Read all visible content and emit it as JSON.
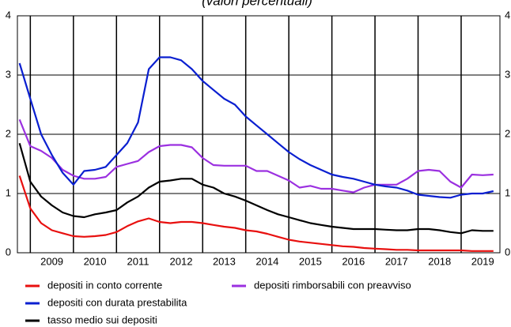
{
  "chart_data": {
    "type": "line",
    "title": "(valori percentuali)",
    "x": [
      2008.75,
      2009,
      2009.25,
      2009.5,
      2009.75,
      2010,
      2010.25,
      2010.5,
      2010.75,
      2011,
      2011.25,
      2011.5,
      2011.75,
      2012,
      2012.25,
      2012.5,
      2012.75,
      2013,
      2013.25,
      2013.5,
      2013.75,
      2014,
      2014.25,
      2014.5,
      2014.75,
      2015,
      2015.25,
      2015.5,
      2015.75,
      2016,
      2016.25,
      2016.5,
      2016.75,
      2017,
      2017.25,
      2017.5,
      2017.75,
      2018,
      2018.25,
      2018.5,
      2018.75,
      2019,
      2019.25,
      2019.5,
      2019.75
    ],
    "series": [
      {
        "name": "depositi in conto corrente",
        "color": "#e8100f",
        "values": [
          1.3,
          0.75,
          0.5,
          0.38,
          0.33,
          0.28,
          0.27,
          0.28,
          0.3,
          0.35,
          0.45,
          0.53,
          0.58,
          0.52,
          0.5,
          0.52,
          0.52,
          0.5,
          0.47,
          0.44,
          0.42,
          0.38,
          0.36,
          0.32,
          0.27,
          0.22,
          0.19,
          0.17,
          0.15,
          0.13,
          0.11,
          0.1,
          0.08,
          0.07,
          0.06,
          0.05,
          0.05,
          0.04,
          0.04,
          0.04,
          0.04,
          0.04,
          0.03,
          0.03,
          0.03
        ]
      },
      {
        "name": "depositi rimborsabili con preavviso",
        "color": "#9b30e0",
        "values": [
          2.25,
          1.8,
          1.72,
          1.6,
          1.4,
          1.3,
          1.25,
          1.25,
          1.28,
          1.45,
          1.5,
          1.55,
          1.7,
          1.8,
          1.82,
          1.82,
          1.78,
          1.6,
          1.48,
          1.47,
          1.47,
          1.47,
          1.38,
          1.38,
          1.3,
          1.22,
          1.1,
          1.13,
          1.08,
          1.08,
          1.05,
          1.02,
          1.1,
          1.15,
          1.15,
          1.15,
          1.25,
          1.38,
          1.4,
          1.38,
          1.2,
          1.1,
          1.32,
          1.31,
          1.32
        ]
      },
      {
        "name": "depositi con durata prestabilita",
        "color": "#0a1fd0",
        "values": [
          3.2,
          2.6,
          2.0,
          1.65,
          1.35,
          1.15,
          1.38,
          1.4,
          1.45,
          1.65,
          1.85,
          2.2,
          3.1,
          3.3,
          3.3,
          3.25,
          3.1,
          2.9,
          2.75,
          2.6,
          2.5,
          2.3,
          2.15,
          2.0,
          1.85,
          1.7,
          1.58,
          1.48,
          1.4,
          1.32,
          1.28,
          1.25,
          1.2,
          1.15,
          1.12,
          1.1,
          1.05,
          0.98,
          0.96,
          0.94,
          0.93,
          0.98,
          1.0,
          1.0,
          1.04
        ]
      },
      {
        "name": "tasso medio sui depositi",
        "color": "#000000",
        "values": [
          1.85,
          1.2,
          0.95,
          0.8,
          0.68,
          0.62,
          0.6,
          0.65,
          0.68,
          0.72,
          0.85,
          0.95,
          1.1,
          1.2,
          1.22,
          1.25,
          1.25,
          1.15,
          1.1,
          1.0,
          0.95,
          0.88,
          0.8,
          0.72,
          0.65,
          0.6,
          0.55,
          0.5,
          0.47,
          0.44,
          0.42,
          0.4,
          0.4,
          0.4,
          0.39,
          0.38,
          0.38,
          0.4,
          0.4,
          0.38,
          0.35,
          0.33,
          0.38,
          0.37,
          0.37
        ]
      }
    ],
    "xlim": [
      2008.7,
      2019.9
    ],
    "xticks": [
      {
        "value": 2009,
        "label": "2009"
      },
      {
        "value": 2010,
        "label": "2010"
      },
      {
        "value": 2011,
        "label": "2011"
      },
      {
        "value": 2012,
        "label": "2012"
      },
      {
        "value": 2013,
        "label": "2013"
      },
      {
        "value": 2014,
        "label": "2014"
      },
      {
        "value": 2015,
        "label": "2015"
      },
      {
        "value": 2016,
        "label": "2016"
      },
      {
        "value": 2017,
        "label": "2017"
      },
      {
        "value": 2018,
        "label": "2018"
      },
      {
        "value": 2019,
        "label": "2019"
      }
    ],
    "ylim": [
      0,
      4
    ],
    "yticks": [
      0,
      1,
      2,
      3,
      4
    ],
    "y2lim": [
      0,
      4
    ],
    "y2ticks": [
      0,
      1,
      2,
      3,
      4
    ],
    "grid": true
  }
}
